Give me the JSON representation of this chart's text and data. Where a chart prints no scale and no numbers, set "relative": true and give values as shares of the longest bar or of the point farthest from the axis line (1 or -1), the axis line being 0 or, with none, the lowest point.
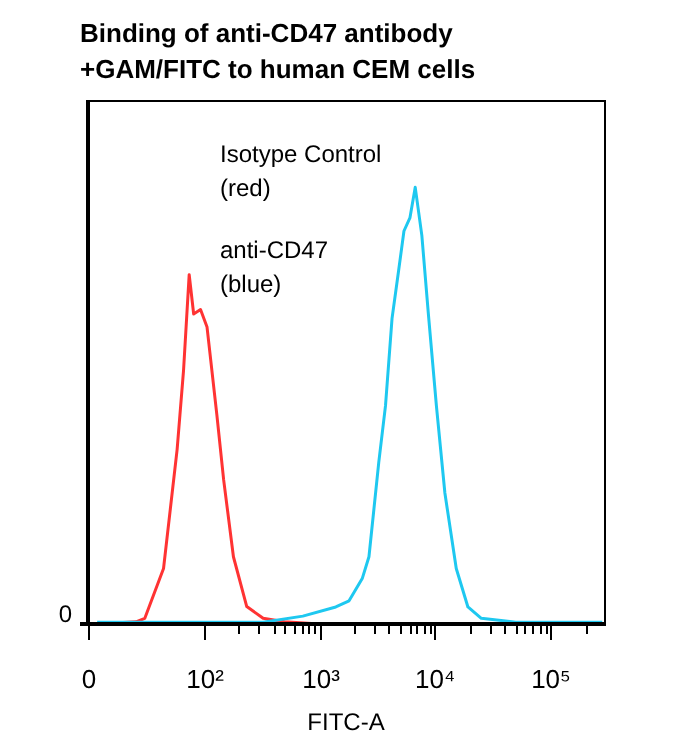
{
  "chart_data": {
    "type": "line",
    "title": "Binding of anti-CD47 antibody +GAM/FITC to human CEM cells",
    "xlabel": "FITC-A",
    "relative": true,
    "log": "x",
    "xlim": [
      0,
      290000
    ],
    "xticks": [
      {
        "value": 0,
        "label": "0"
      },
      {
        "value": 100,
        "label": "10²"
      },
      {
        "value": 200,
        "label": null
      },
      {
        "value": 300,
        "label": null
      },
      {
        "value": 400,
        "label": null
      },
      {
        "value": 500,
        "label": null
      },
      {
        "value": 600,
        "label": null
      },
      {
        "value": 700,
        "label": null
      },
      {
        "value": 800,
        "label": null
      },
      {
        "value": 900,
        "label": null
      },
      {
        "value": 1000,
        "label": "10³"
      },
      {
        "value": 2000,
        "label": null
      },
      {
        "value": 3000,
        "label": null
      },
      {
        "value": 4000,
        "label": null
      },
      {
        "value": 5000,
        "label": null
      },
      {
        "value": 6000,
        "label": null
      },
      {
        "value": 7000,
        "label": null
      },
      {
        "value": 8000,
        "label": null
      },
      {
        "value": 9000,
        "label": null
      },
      {
        "value": 10000,
        "label": "10⁴"
      },
      {
        "value": 20000,
        "label": null
      },
      {
        "value": 30000,
        "label": null
      },
      {
        "value": 40000,
        "label": null
      },
      {
        "value": 50000,
        "label": null
      },
      {
        "value": 60000,
        "label": null
      },
      {
        "value": 70000,
        "label": null
      },
      {
        "value": 80000,
        "label": null
      },
      {
        "value": 90000,
        "label": null
      },
      {
        "value": 100000,
        "label": "10⁵"
      },
      {
        "value": 200000,
        "label": null
      }
    ],
    "annotations": [
      "Isotype Control\n(red)",
      "anti-CD47\n(blue)",
      "0"
    ],
    "series": [
      {
        "color": "#1ec8f0",
        "x": [
          12,
          327,
          721,
          1390,
          1810,
          2360,
          2690,
          3270,
          3740,
          4260,
          4860,
          5400,
          6080,
          6760,
          7710,
          8780,
          10300,
          12200,
          15300,
          19300,
          25200,
          50000,
          280000
        ],
        "values": [
          0.004,
          0.004,
          0.018,
          0.039,
          0.053,
          0.105,
          0.154,
          0.37,
          0.5,
          0.7,
          0.81,
          0.9,
          0.93,
          1,
          0.89,
          0.71,
          0.5,
          0.3,
          0.127,
          0.039,
          0.013,
          0.004,
          0.004
        ]
      },
      {
        "color": "#ff3333",
        "x": [
          12,
          26,
          31,
          45,
          59,
          67,
          75,
          82,
          94,
          107,
          130,
          149,
          181,
          236,
          327,
          500,
          1000,
          280000
        ],
        "values": [
          0,
          0.005,
          0.013,
          0.127,
          0.4,
          0.58,
          0.8,
          0.71,
          0.72,
          0.68,
          0.48,
          0.33,
          0.154,
          0.04,
          0.013,
          0.005,
          0,
          0
        ]
      }
    ]
  }
}
